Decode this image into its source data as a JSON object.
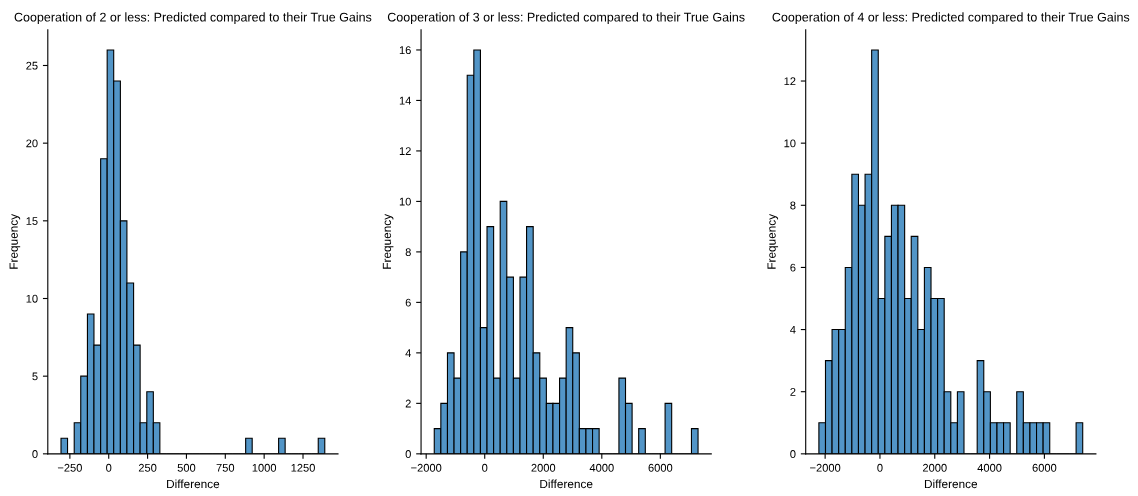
{
  "chart_data": [
    {
      "type": "histogram",
      "title": "Cooperation of 2 or less: Predicted compared to their True Gains",
      "xlabel": "Difference",
      "ylabel": "Frequency",
      "color": "#5295c7",
      "bins": [
        -307,
        -265,
        -222,
        -180,
        -137,
        -95,
        -52,
        -10,
        32,
        75,
        117,
        160,
        202,
        245,
        287,
        329,
        372,
        414,
        457,
        499,
        541,
        584,
        626,
        669,
        711,
        754,
        796,
        838,
        881,
        923,
        966,
        1008,
        1051,
        1093,
        1135,
        1178,
        1220,
        1263,
        1305,
        1348,
        1390
      ],
      "values": [
        1,
        0,
        2,
        5,
        9,
        7,
        19,
        26,
        24,
        15,
        11,
        7,
        2,
        4,
        2,
        0,
        0,
        0,
        0,
        0,
        0,
        0,
        0,
        0,
        0,
        0,
        0,
        0,
        1,
        0,
        0,
        0,
        0,
        1,
        0,
        0,
        0,
        0,
        0,
        1
      ],
      "xlim": [
        -392,
        1475
      ],
      "ylim": [
        0,
        27.3
      ],
      "xticks": [
        -250,
        0,
        250,
        500,
        750,
        1000,
        1250
      ],
      "yticks": [
        0,
        5,
        10,
        15,
        20,
        25
      ],
      "grid": false
    },
    {
      "type": "histogram",
      "title": "Cooperation of 3 or less: Predicted compared to their True Gains",
      "xlabel": "Difference",
      "ylabel": "Frequency",
      "color": "#5295c7",
      "bins": [
        -1724,
        -1499,
        -1273,
        -1048,
        -823,
        -598,
        -372,
        -147,
        78,
        304,
        529,
        754,
        980,
        1205,
        1430,
        1656,
        1881,
        2106,
        2331,
        2557,
        2782,
        3007,
        3233,
        3458,
        3683,
        3909,
        4134,
        4359,
        4585,
        4810,
        5035,
        5260,
        5486,
        5711,
        5936,
        6162,
        6387,
        6612,
        6838,
        7063,
        7288
      ],
      "values": [
        1,
        2,
        4,
        3,
        8,
        15,
        16,
        5,
        9,
        3,
        10,
        7,
        3,
        7,
        9,
        4,
        3,
        2,
        2,
        3,
        5,
        4,
        1,
        1,
        1,
        0,
        0,
        0,
        3,
        2,
        0,
        1,
        0,
        0,
        0,
        2,
        0,
        0,
        0,
        1
      ],
      "xlim": [
        -2175,
        7739
      ],
      "ylim": [
        0,
        16.8
      ],
      "xticks": [
        -2000,
        0,
        2000,
        4000,
        6000
      ],
      "yticks": [
        0,
        2,
        4,
        6,
        8,
        10,
        12,
        14,
        16
      ],
      "grid": false
    },
    {
      "type": "histogram",
      "title": "Cooperation of 4 or less: Predicted compared to their True Gains",
      "xlabel": "Difference",
      "ylabel": "Frequency",
      "color": "#5295c7",
      "bins": [
        -2228,
        -1987,
        -1747,
        -1506,
        -1265,
        -1025,
        -784,
        -543,
        -303,
        -62,
        179,
        419,
        660,
        901,
        1141,
        1382,
        1622,
        1863,
        2104,
        2344,
        2585,
        2826,
        3066,
        3307,
        3548,
        3788,
        4029,
        4270,
        4510,
        4751,
        4991,
        5232,
        5473,
        5713,
        5954,
        6195,
        6435,
        6676,
        6917,
        7157,
        7398
      ],
      "values": [
        1,
        3,
        4,
        4,
        6,
        9,
        8,
        9,
        13,
        5,
        7,
        8,
        8,
        5,
        7,
        4,
        6,
        5,
        5,
        2,
        1,
        2,
        0,
        0,
        3,
        2,
        1,
        1,
        1,
        0,
        2,
        1,
        1,
        1,
        1,
        0,
        0,
        0,
        0,
        1
      ],
      "xlim": [
        -2709,
        7879
      ],
      "ylim": [
        0,
        13.65
      ],
      "xticks": [
        -2000,
        0,
        2000,
        4000,
        6000
      ],
      "yticks": [
        0,
        2,
        4,
        6,
        8,
        10,
        12
      ],
      "grid": false
    }
  ]
}
